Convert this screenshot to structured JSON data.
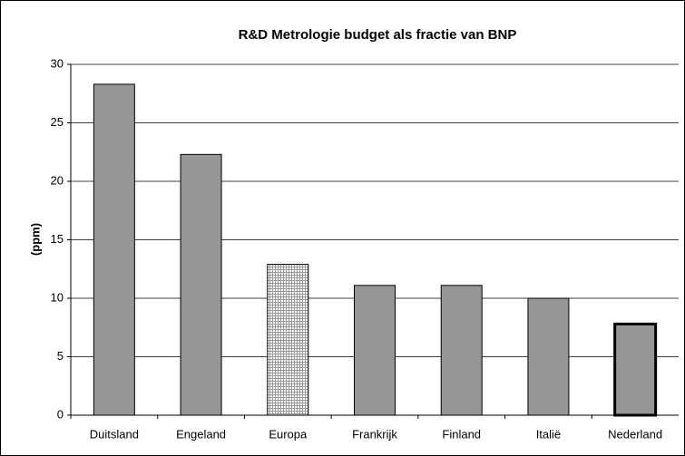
{
  "chart_data": {
    "type": "bar",
    "title": "R&D Metrologie budget als fractie van BNP",
    "y_label": "(ppm)",
    "categories": [
      "Duitsland",
      "Engeland",
      "Europa",
      "Frankrijk",
      "Finland",
      "Italië",
      "Nederland"
    ],
    "values": [
      28.3,
      22.3,
      12.9,
      11.1,
      11.1,
      10.0,
      7.8
    ],
    "color": "#969696",
    "styles": [
      "plain",
      "plain",
      "checkered",
      "plain",
      "plain",
      "plain",
      "bold-outline"
    ],
    "ylim": [
      0,
      30
    ],
    "yticks": [
      0,
      5,
      10,
      15,
      20,
      25,
      30
    ],
    "grid": true
  }
}
